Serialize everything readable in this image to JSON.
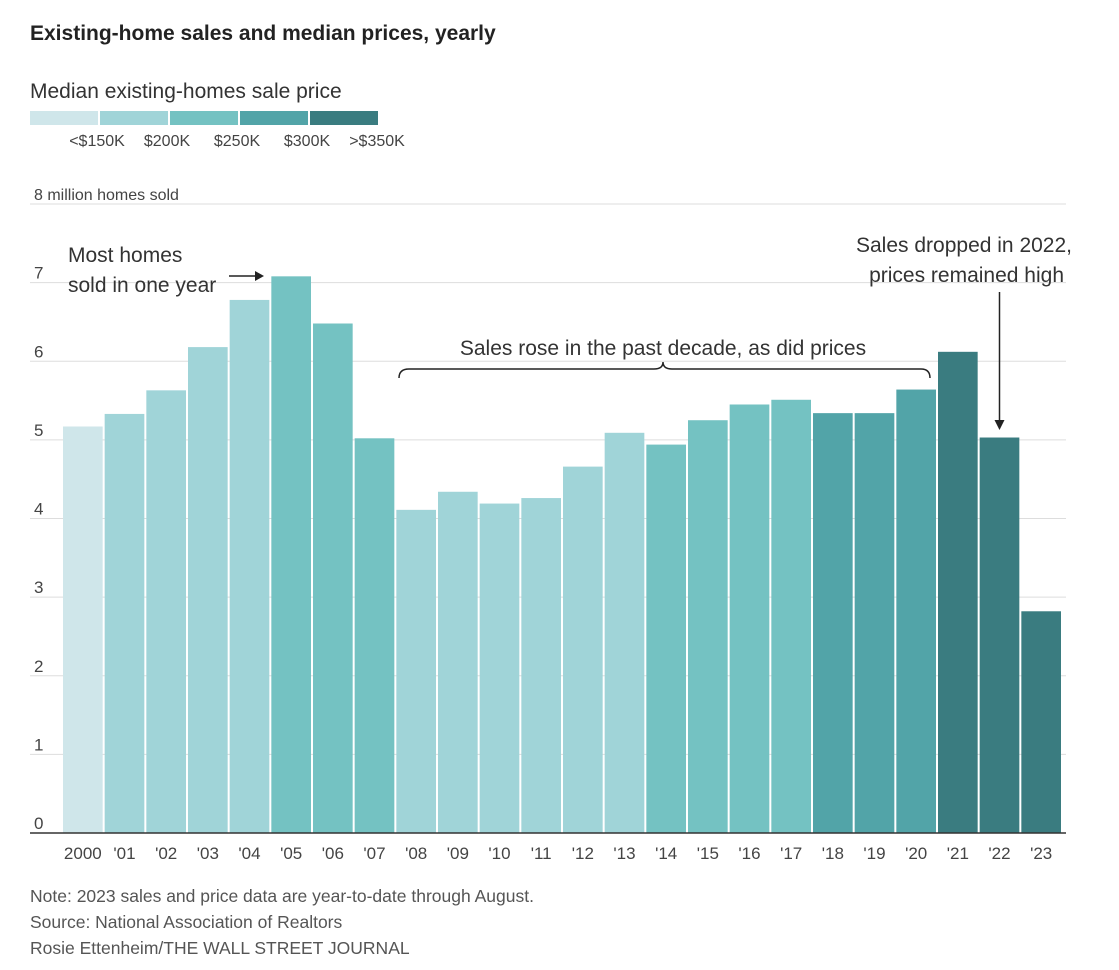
{
  "title": "Existing-home sales and median prices, yearly",
  "legend": {
    "title": "Median existing-homes sale price",
    "bins": [
      {
        "label": "<$150K",
        "color": "#cfe6ea"
      },
      {
        "label": "$200K",
        "color": "#a0d4d8"
      },
      {
        "label": "$250K",
        "color": "#74c2c2"
      },
      {
        "label": "$300K",
        "color": "#52a4a8"
      },
      {
        "label": ">$350K",
        "color": "#3a7c80"
      }
    ]
  },
  "chart_data": {
    "type": "bar",
    "ylabel": "8 million homes sold",
    "ylim": [
      0,
      8
    ],
    "yticks": [
      "0",
      "1",
      "2",
      "3",
      "4",
      "5",
      "6",
      "7"
    ],
    "categories": [
      "2000",
      "'01",
      "'02",
      "'03",
      "'04",
      "'05",
      "'06",
      "'07",
      "'08",
      "'09",
      "'10",
      "'11",
      "'12",
      "'13",
      "'14",
      "'15",
      "'16",
      "'17",
      "'18",
      "'19",
      "'20",
      "'21",
      "'22",
      "'23"
    ],
    "values": [
      5.17,
      5.33,
      5.63,
      6.18,
      6.78,
      7.08,
      6.48,
      5.02,
      4.11,
      4.34,
      4.19,
      4.26,
      4.66,
      5.09,
      4.94,
      5.25,
      5.45,
      5.51,
      5.34,
      5.34,
      5.64,
      6.12,
      5.03,
      2.82
    ],
    "price_bin": [
      0,
      1,
      1,
      1,
      1,
      2,
      2,
      2,
      1,
      1,
      1,
      1,
      1,
      1,
      2,
      2,
      2,
      2,
      3,
      3,
      3,
      4,
      4,
      4
    ],
    "annotations": [
      {
        "text": [
          "Most homes",
          "sold in one year"
        ]
      },
      {
        "text": [
          "Sales rose in the past decade, as did prices"
        ]
      },
      {
        "text": [
          "Sales dropped in 2022,",
          "prices remained high"
        ]
      }
    ]
  },
  "footer": {
    "note": "Note: 2023 sales and price data are year-to-date through August.",
    "source": "Source: National Association of Realtors",
    "credit": "Rosie Ettenheim/THE WALL STREET JOURNAL"
  }
}
